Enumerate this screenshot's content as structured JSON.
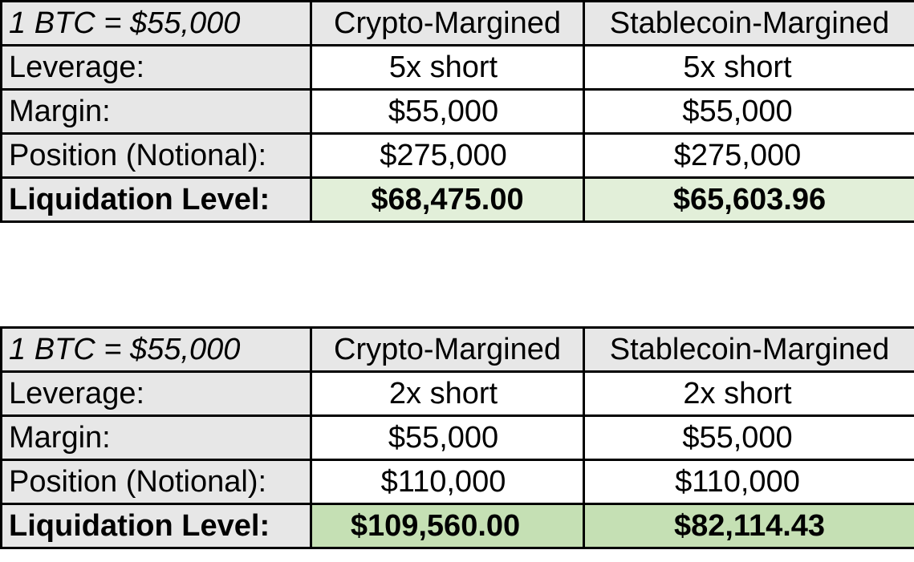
{
  "tables": [
    {
      "header": {
        "label": "1 BTC = $55,000",
        "col1": "Crypto-Margined",
        "col2": "Stablecoin-Margined"
      },
      "rows": [
        {
          "label": "Leverage:",
          "crypto": "5x short",
          "stablecoin": "5x short"
        },
        {
          "label": "Margin:",
          "crypto": "$55,000",
          "stablecoin": "$55,000"
        },
        {
          "label": "Position (Notional):",
          "crypto": "$275,000",
          "stablecoin": "$275,000"
        }
      ],
      "liquidation": {
        "label": "Liquidation Level:",
        "crypto": "$68,475.00",
        "stablecoin": "$65,603.96"
      },
      "highlight_color": "#e2efd9"
    },
    {
      "header": {
        "label": "1 BTC = $55,000",
        "col1": "Crypto-Margined",
        "col2": "Stablecoin-Margined"
      },
      "rows": [
        {
          "label": "Leverage:",
          "crypto": "2x short",
          "stablecoin": "2x short"
        },
        {
          "label": "Margin:",
          "crypto": "$55,000",
          "stablecoin": "$55,000"
        },
        {
          "label": "Position (Notional):",
          "crypto": "$110,000",
          "stablecoin": "$110,000"
        }
      ],
      "liquidation": {
        "label": "Liquidation Level:",
        "crypto": "$109,560.00",
        "stablecoin": "$82,114.43"
      },
      "highlight_color": "#c5e0b4"
    }
  ]
}
